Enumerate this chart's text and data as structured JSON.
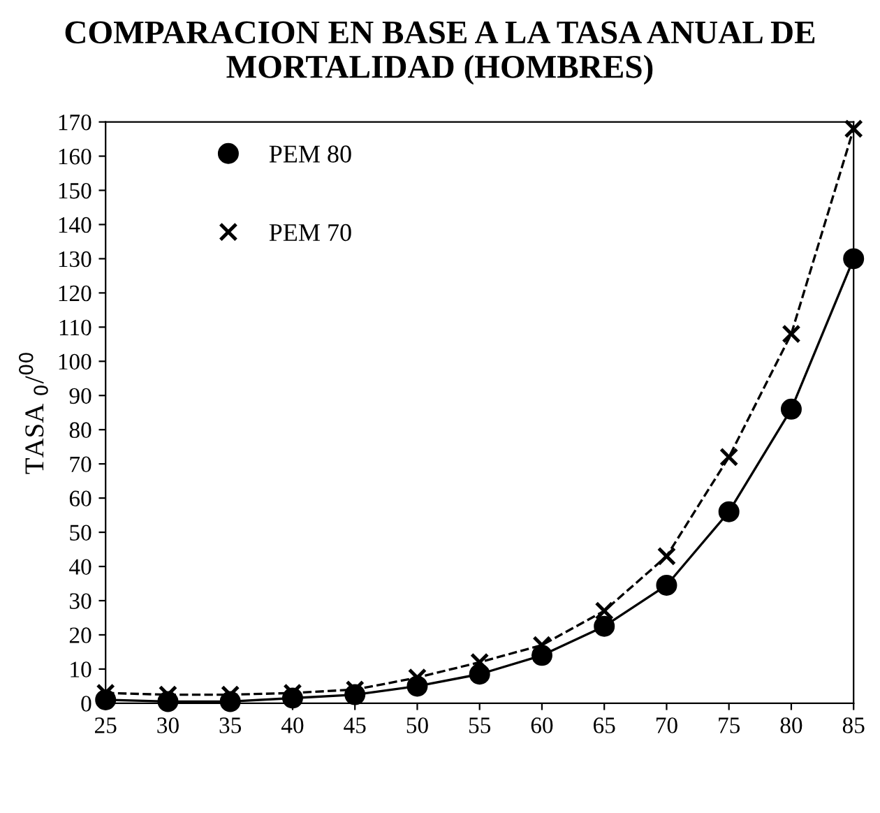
{
  "chart_data": {
    "type": "line",
    "title": "COMPARACION EN BASE A LA TASA ANUAL DE MORTALIDAD (HOMBRES)",
    "ylabel": "TASA $_{0}$/$^{00}$",
    "x": [
      25,
      30,
      35,
      40,
      45,
      50,
      55,
      60,
      65,
      70,
      75,
      80,
      85
    ],
    "series": [
      {
        "name": "PEM 80",
        "color": "#000000",
        "marker": "circle",
        "line_style": "solid",
        "values": [
          1,
          0.5,
          0.5,
          1.5,
          2.5,
          5,
          8.5,
          14,
          22.5,
          34.5,
          56,
          86,
          130
        ]
      },
      {
        "name": "PEM 70",
        "color": "#000000",
        "marker": "cross",
        "line_style": "dashed",
        "values": [
          3,
          2.5,
          2.5,
          3,
          4,
          7.5,
          12,
          17,
          27,
          43,
          72,
          108,
          168
        ]
      }
    ],
    "xlim": [
      25,
      85
    ],
    "xticks": [
      25,
      30,
      35,
      40,
      45,
      50,
      55,
      60,
      65,
      70,
      75,
      80,
      85
    ],
    "ylim": [
      0,
      170
    ],
    "yticks": [
      0,
      10,
      20,
      30,
      40,
      50,
      60,
      70,
      80,
      90,
      100,
      110,
      120,
      130,
      140,
      150,
      160,
      170
    ],
    "grid": false,
    "legend": "top left"
  }
}
